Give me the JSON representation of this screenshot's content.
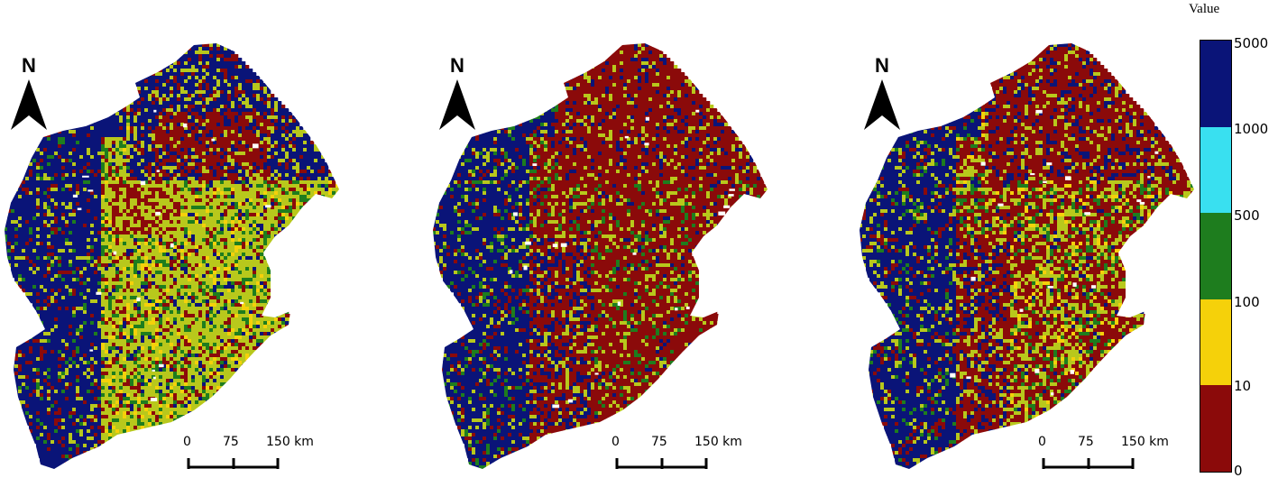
{
  "north_label": "N",
  "scale": {
    "labels": [
      "0",
      "75",
      "150 km"
    ]
  },
  "legend": {
    "title": "Value",
    "ticks": [
      "5000",
      "1000",
      "500",
      "100",
      "10",
      "0"
    ],
    "colors": [
      "#0a1478",
      "#39e0f0",
      "#1e7d1e",
      "#f5d10a",
      "#8b0a0a"
    ]
  },
  "palette": {
    "blue": "#0a1478",
    "cyan": "#39e0f0",
    "green": "#1e7d1e",
    "yellow": "#f5d10a",
    "yellowgreen": "#b8c81c",
    "red": "#8b0a0a"
  },
  "panels": [
    {
      "id": "map-1",
      "dominant": "mixed"
    },
    {
      "id": "map-2",
      "dominant": "red"
    },
    {
      "id": "map-3",
      "dominant": "redmixed"
    }
  ]
}
